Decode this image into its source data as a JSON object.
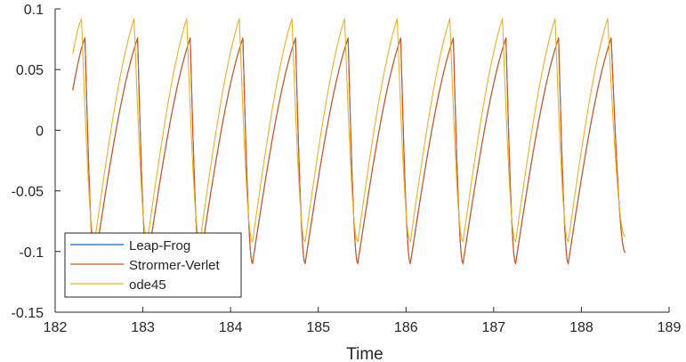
{
  "chart_data": {
    "type": "line",
    "title": "",
    "xlabel": "Time",
    "ylabel": "",
    "xlim": [
      182,
      189
    ],
    "ylim": [
      -0.15,
      0.1
    ],
    "xticks": [
      "182",
      "183",
      "184",
      "185",
      "186",
      "187",
      "188",
      "189"
    ],
    "yticks": [
      "-0.15",
      "-0.1",
      "-0.05",
      "0",
      "0.05",
      "0.1"
    ],
    "grid": false,
    "legend_position": "bottom-left",
    "x_start": 182.2,
    "x_end": 188.5,
    "period": 0.6,
    "series": [
      {
        "name": "Leap-Frog",
        "color": "#0072BD",
        "start_value": 0.033,
        "peaks": [
          [
            182.34,
            0.076
          ],
          [
            182.94,
            0.076
          ],
          [
            183.54,
            0.076
          ],
          [
            184.14,
            0.076
          ],
          [
            184.74,
            0.076
          ],
          [
            185.34,
            0.076
          ],
          [
            185.94,
            0.076
          ],
          [
            186.54,
            0.076
          ],
          [
            187.14,
            0.076
          ],
          [
            187.74,
            0.076
          ],
          [
            188.34,
            0.076
          ]
        ],
        "troughs": [
          [
            182.45,
            -0.11
          ],
          [
            183.05,
            -0.11
          ],
          [
            183.65,
            -0.11
          ],
          [
            184.25,
            -0.11
          ],
          [
            184.85,
            -0.11
          ],
          [
            185.45,
            -0.11
          ],
          [
            186.05,
            -0.11
          ],
          [
            186.65,
            -0.11
          ],
          [
            187.25,
            -0.11
          ],
          [
            187.85,
            -0.11
          ]
        ],
        "end_value": -0.101
      },
      {
        "name": "Strormer-Verlet",
        "color": "#D95319",
        "start_value": 0.033,
        "peaks": [
          [
            182.34,
            0.076
          ],
          [
            182.94,
            0.076
          ],
          [
            183.54,
            0.076
          ],
          [
            184.14,
            0.076
          ],
          [
            184.74,
            0.076
          ],
          [
            185.34,
            0.076
          ],
          [
            185.94,
            0.076
          ],
          [
            186.54,
            0.076
          ],
          [
            187.14,
            0.076
          ],
          [
            187.74,
            0.076
          ],
          [
            188.34,
            0.076
          ]
        ],
        "troughs": [
          [
            182.45,
            -0.11
          ],
          [
            183.05,
            -0.11
          ],
          [
            183.65,
            -0.11
          ],
          [
            184.25,
            -0.11
          ],
          [
            184.85,
            -0.11
          ],
          [
            185.45,
            -0.11
          ],
          [
            186.05,
            -0.11
          ],
          [
            186.65,
            -0.11
          ],
          [
            187.25,
            -0.11
          ],
          [
            187.85,
            -0.11
          ]
        ],
        "end_value": -0.101
      },
      {
        "name": "ode45",
        "color": "#EDB120",
        "start_value": 0.063,
        "peaks": [
          [
            182.3,
            0.092
          ],
          [
            182.9,
            0.092
          ],
          [
            183.5,
            0.092
          ],
          [
            184.1,
            0.092
          ],
          [
            184.7,
            0.092
          ],
          [
            185.3,
            0.092
          ],
          [
            185.9,
            0.092
          ],
          [
            186.5,
            0.092
          ],
          [
            187.1,
            0.092
          ],
          [
            187.7,
            0.092
          ],
          [
            188.3,
            0.092
          ]
        ],
        "troughs": [
          [
            182.45,
            -0.092
          ],
          [
            183.05,
            -0.092
          ],
          [
            183.65,
            -0.092
          ],
          [
            184.25,
            -0.092
          ],
          [
            184.85,
            -0.092
          ],
          [
            185.45,
            -0.092
          ],
          [
            186.05,
            -0.092
          ],
          [
            186.65,
            -0.092
          ],
          [
            187.25,
            -0.092
          ],
          [
            187.85,
            -0.092
          ]
        ],
        "end_value": -0.088
      }
    ]
  }
}
